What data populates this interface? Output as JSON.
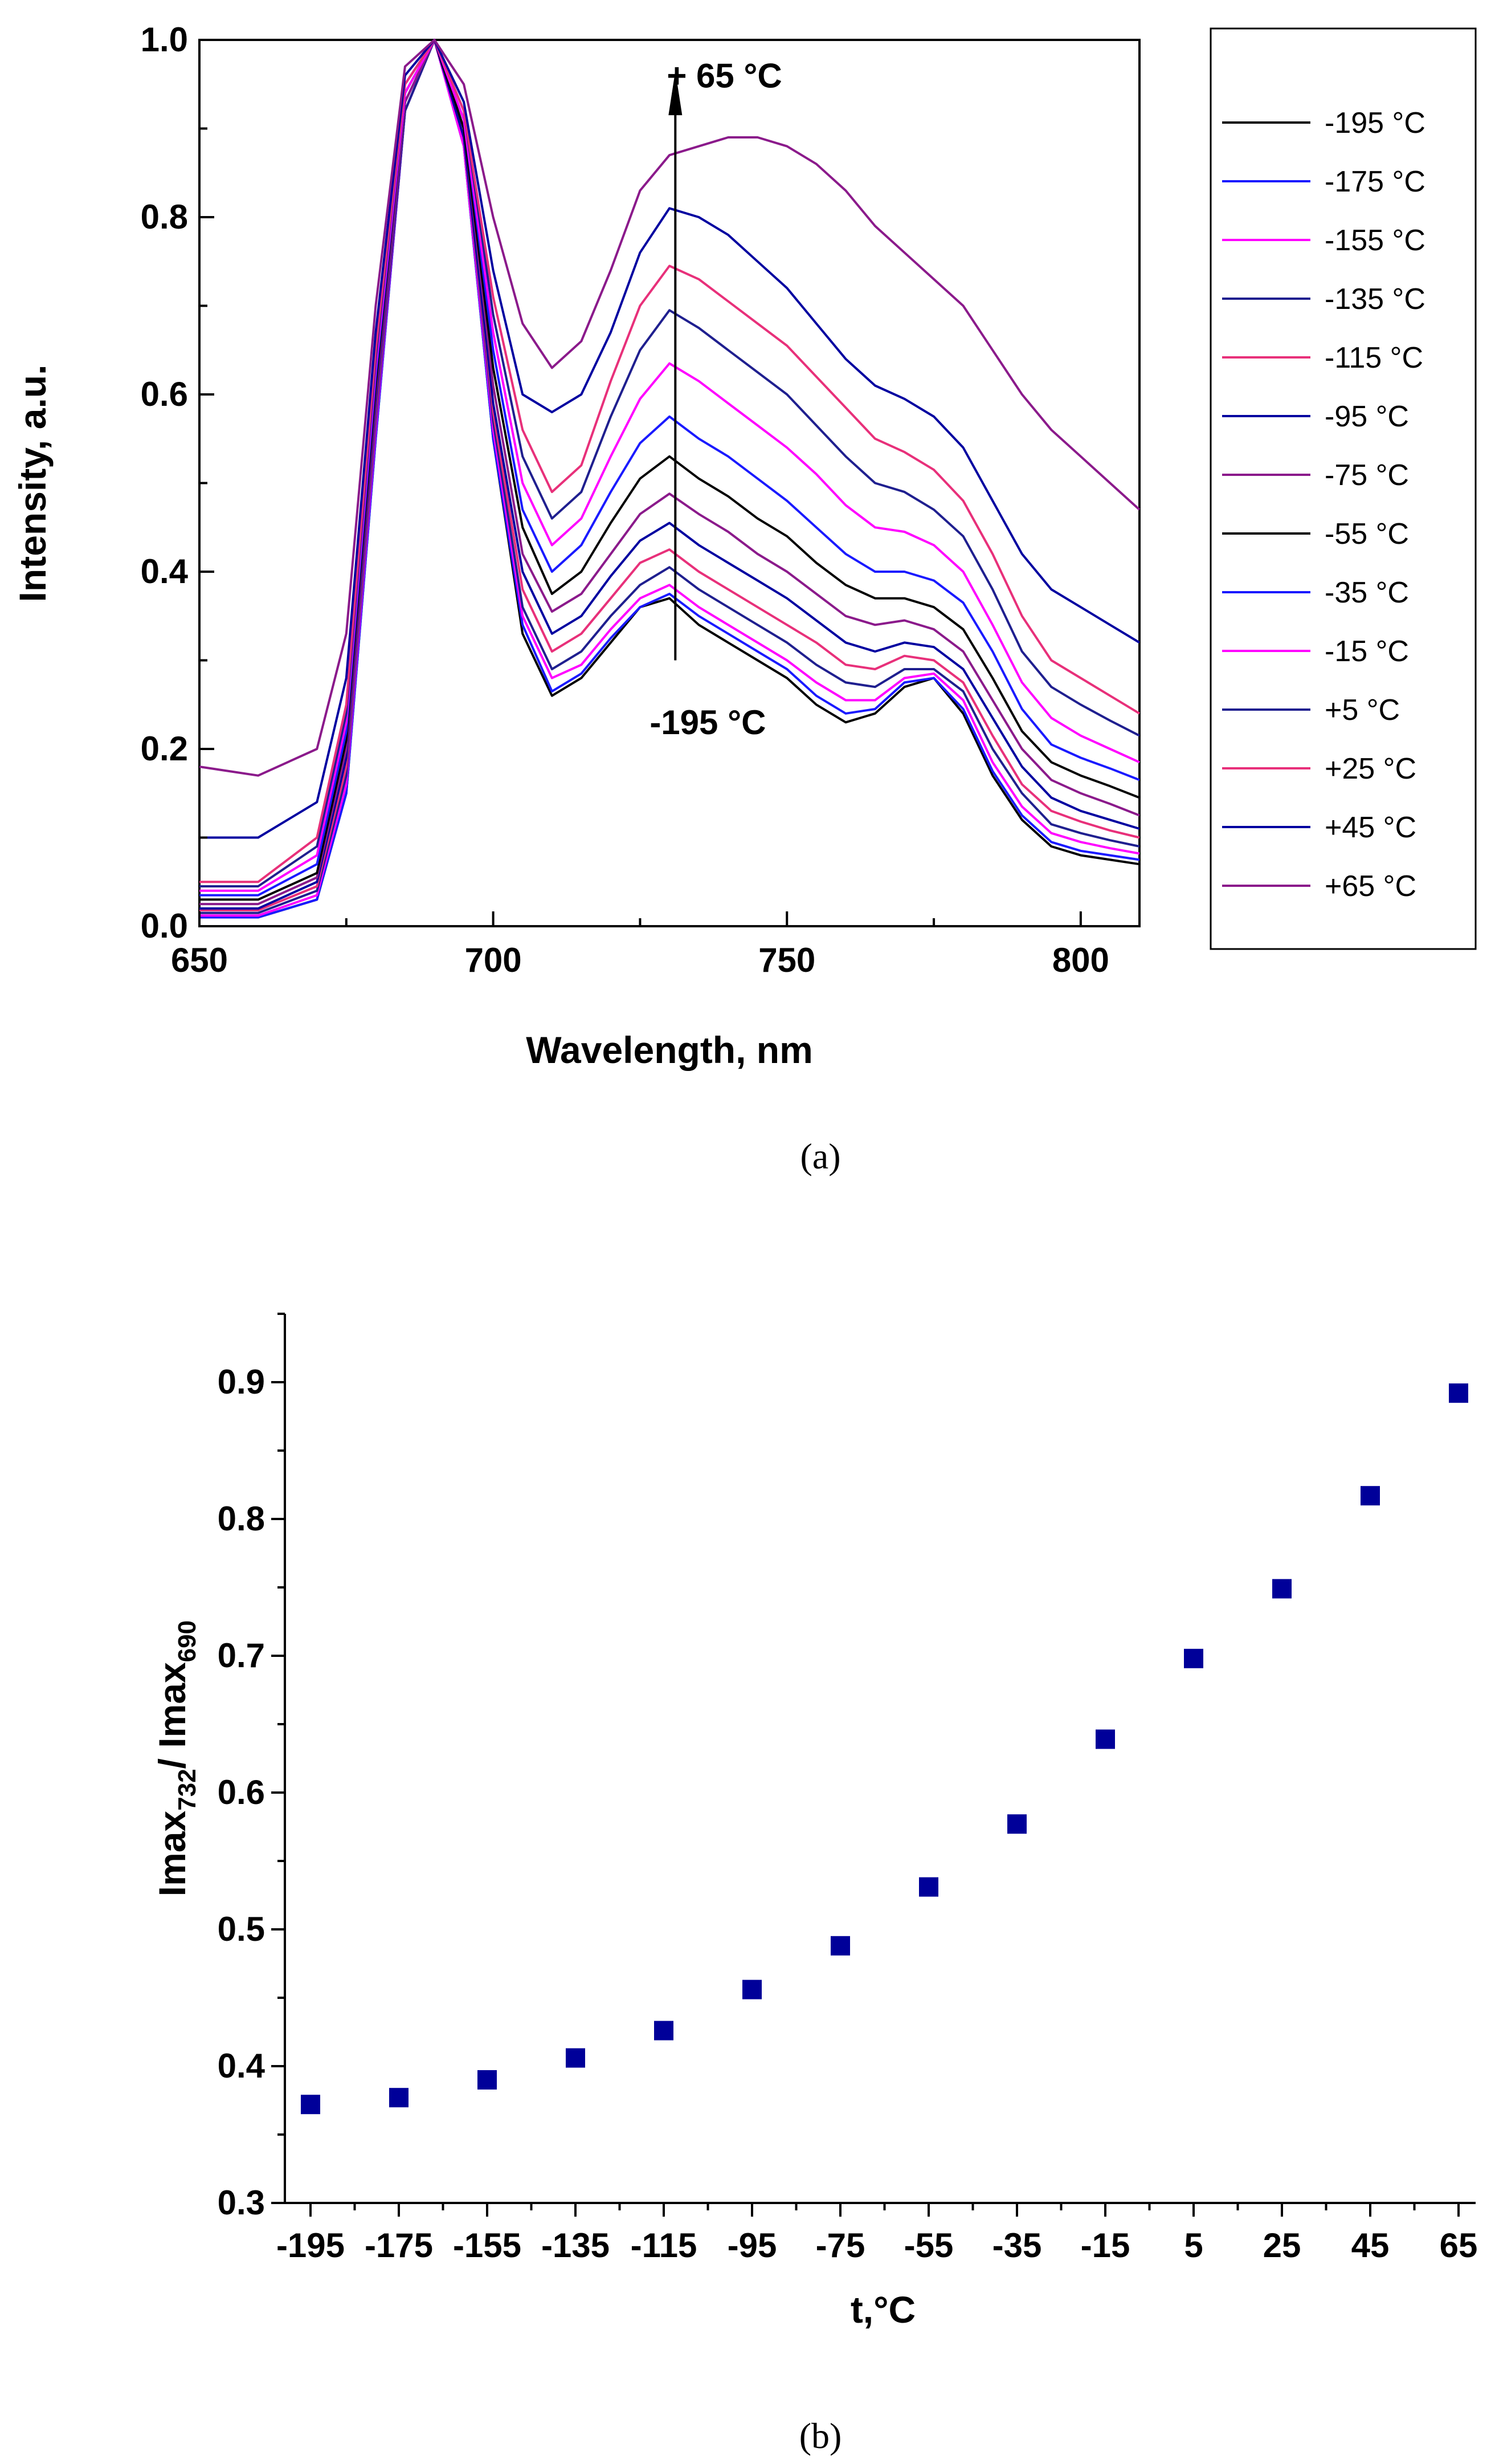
{
  "figure": {
    "caption_a": "(a)",
    "caption_b": "(b)"
  },
  "chart_data": [
    {
      "type": "line",
      "panel": "a",
      "xlabel": "Wavelength, nm",
      "ylabel": "Intensity, a.u.",
      "xlim": [
        650,
        810
      ],
      "ylim": [
        0.0,
        1.0
      ],
      "xticks": [
        "650",
        "700",
        "750",
        "800"
      ],
      "yticks": [
        "0.0",
        "0.2",
        "0.4",
        "0.6",
        "0.8",
        "1.0"
      ],
      "annotations": {
        "top": "+ 65 °C",
        "bottom": "-195 °C",
        "arrow_x": 731
      },
      "x": [
        650,
        660,
        670,
        675,
        680,
        685,
        690,
        695,
        700,
        705,
        710,
        715,
        720,
        725,
        730,
        735,
        740,
        745,
        750,
        755,
        760,
        765,
        770,
        775,
        780,
        785,
        790,
        795,
        800,
        805,
        810
      ],
      "series": [
        {
          "name": "-195 °C",
          "color": "#000000",
          "values": [
            0.01,
            0.01,
            0.03,
            0.15,
            0.55,
            0.92,
            1.0,
            0.88,
            0.55,
            0.33,
            0.26,
            0.28,
            0.32,
            0.36,
            0.37,
            0.34,
            0.32,
            0.3,
            0.28,
            0.25,
            0.23,
            0.24,
            0.27,
            0.28,
            0.24,
            0.17,
            0.12,
            0.09,
            0.08,
            0.075,
            0.07
          ]
        },
        {
          "name": "-175 °C",
          "color": "#1a1aff",
          "values": [
            0.01,
            0.01,
            0.03,
            0.15,
            0.55,
            0.92,
            1.0,
            0.88,
            0.55,
            0.34,
            0.265,
            0.285,
            0.325,
            0.36,
            0.375,
            0.35,
            0.33,
            0.31,
            0.29,
            0.26,
            0.24,
            0.245,
            0.275,
            0.28,
            0.245,
            0.175,
            0.125,
            0.095,
            0.085,
            0.08,
            0.075
          ]
        },
        {
          "name": "-155 °C",
          "color": "#ff00ff",
          "values": [
            0.012,
            0.012,
            0.035,
            0.16,
            0.56,
            0.92,
            1.0,
            0.88,
            0.56,
            0.35,
            0.28,
            0.295,
            0.335,
            0.37,
            0.385,
            0.36,
            0.34,
            0.32,
            0.3,
            0.275,
            0.255,
            0.255,
            0.28,
            0.285,
            0.255,
            0.185,
            0.135,
            0.105,
            0.095,
            0.088,
            0.082
          ]
        },
        {
          "name": "-135 °C",
          "color": "#1f1f8f",
          "values": [
            0.015,
            0.015,
            0.04,
            0.17,
            0.57,
            0.92,
            1.0,
            0.89,
            0.57,
            0.36,
            0.29,
            0.31,
            0.35,
            0.385,
            0.405,
            0.38,
            0.36,
            0.34,
            0.32,
            0.295,
            0.275,
            0.27,
            0.29,
            0.29,
            0.265,
            0.2,
            0.15,
            0.115,
            0.105,
            0.097,
            0.09
          ]
        },
        {
          "name": "-115 °C",
          "color": "#e8307a",
          "values": [
            0.018,
            0.018,
            0.045,
            0.18,
            0.58,
            0.93,
            1.0,
            0.89,
            0.58,
            0.38,
            0.31,
            0.33,
            0.37,
            0.41,
            0.425,
            0.4,
            0.38,
            0.36,
            0.34,
            0.32,
            0.295,
            0.29,
            0.305,
            0.3,
            0.275,
            0.215,
            0.16,
            0.13,
            0.118,
            0.108,
            0.1
          ]
        },
        {
          "name": "-95 °C",
          "color": "#0000a0",
          "values": [
            0.02,
            0.02,
            0.05,
            0.19,
            0.59,
            0.93,
            1.0,
            0.89,
            0.59,
            0.4,
            0.33,
            0.35,
            0.395,
            0.435,
            0.455,
            0.43,
            0.41,
            0.39,
            0.37,
            0.345,
            0.32,
            0.31,
            0.32,
            0.315,
            0.29,
            0.235,
            0.18,
            0.145,
            0.13,
            0.12,
            0.11
          ]
        },
        {
          "name": "-75 °C",
          "color": "#8b1a8b",
          "values": [
            0.025,
            0.025,
            0.055,
            0.2,
            0.6,
            0.93,
            1.0,
            0.9,
            0.61,
            0.42,
            0.355,
            0.375,
            0.42,
            0.465,
            0.488,
            0.465,
            0.445,
            0.42,
            0.4,
            0.375,
            0.35,
            0.34,
            0.345,
            0.335,
            0.31,
            0.255,
            0.2,
            0.165,
            0.15,
            0.138,
            0.125
          ]
        },
        {
          "name": "-55 °C",
          "color": "#000000",
          "values": [
            0.03,
            0.03,
            0.06,
            0.21,
            0.61,
            0.94,
            1.0,
            0.9,
            0.63,
            0.45,
            0.375,
            0.4,
            0.455,
            0.505,
            0.53,
            0.505,
            0.485,
            0.46,
            0.44,
            0.41,
            0.385,
            0.37,
            0.37,
            0.36,
            0.335,
            0.28,
            0.22,
            0.185,
            0.17,
            0.158,
            0.145
          ]
        },
        {
          "name": "-35 °C",
          "color": "#1a1aff",
          "values": [
            0.035,
            0.035,
            0.07,
            0.22,
            0.62,
            0.94,
            1.0,
            0.91,
            0.65,
            0.47,
            0.4,
            0.43,
            0.49,
            0.545,
            0.575,
            0.55,
            0.53,
            0.505,
            0.48,
            0.45,
            0.42,
            0.4,
            0.4,
            0.39,
            0.365,
            0.31,
            0.245,
            0.205,
            0.19,
            0.178,
            0.165
          ]
        },
        {
          "name": "-15 °C",
          "color": "#ff00ff",
          "values": [
            0.04,
            0.04,
            0.08,
            0.23,
            0.63,
            0.94,
            1.0,
            0.91,
            0.67,
            0.5,
            0.43,
            0.46,
            0.53,
            0.595,
            0.635,
            0.615,
            0.59,
            0.565,
            0.54,
            0.51,
            0.475,
            0.45,
            0.445,
            0.43,
            0.4,
            0.34,
            0.275,
            0.235,
            0.215,
            0.2,
            0.185
          ]
        },
        {
          "name": "+5 °C",
          "color": "#1f1f8f",
          "values": [
            0.045,
            0.045,
            0.09,
            0.24,
            0.64,
            0.95,
            1.0,
            0.92,
            0.69,
            0.53,
            0.46,
            0.49,
            0.575,
            0.65,
            0.695,
            0.675,
            0.65,
            0.625,
            0.6,
            0.565,
            0.53,
            0.5,
            0.49,
            0.47,
            0.44,
            0.38,
            0.31,
            0.27,
            0.25,
            0.232,
            0.215
          ]
        },
        {
          "name": "+25 °C",
          "color": "#e8307a",
          "values": [
            0.05,
            0.05,
            0.1,
            0.25,
            0.65,
            0.95,
            1.0,
            0.92,
            0.71,
            0.56,
            0.49,
            0.52,
            0.615,
            0.7,
            0.745,
            0.73,
            0.705,
            0.68,
            0.655,
            0.62,
            0.585,
            0.55,
            0.535,
            0.515,
            0.48,
            0.42,
            0.35,
            0.3,
            0.28,
            0.26,
            0.24
          ]
        },
        {
          "name": "+45 °C",
          "color": "#0000a0",
          "values": [
            0.1,
            0.1,
            0.14,
            0.28,
            0.67,
            0.96,
            1.0,
            0.93,
            0.74,
            0.6,
            0.58,
            0.6,
            0.67,
            0.76,
            0.81,
            0.8,
            0.78,
            0.75,
            0.72,
            0.68,
            0.64,
            0.61,
            0.595,
            0.575,
            0.54,
            0.48,
            0.42,
            0.38,
            0.36,
            0.34,
            0.32
          ]
        },
        {
          "name": "+65 °C",
          "color": "#8b1a8b",
          "values": [
            0.18,
            0.17,
            0.2,
            0.33,
            0.7,
            0.97,
            1.0,
            0.95,
            0.8,
            0.68,
            0.63,
            0.66,
            0.74,
            0.83,
            0.87,
            0.88,
            0.89,
            0.89,
            0.88,
            0.86,
            0.83,
            0.79,
            0.76,
            0.73,
            0.7,
            0.65,
            0.6,
            0.56,
            0.53,
            0.5,
            0.47
          ]
        }
      ]
    },
    {
      "type": "scatter",
      "panel": "b",
      "xlabel": "t,°C",
      "ylabel_main": "Imax",
      "ylabel_sub1": "732",
      "ylabel_mid": "/ Imax",
      "ylabel_sub2": "690",
      "ylim": [
        0.3,
        0.95
      ],
      "yticks": [
        "0.3",
        "0.4",
        "0.5",
        "0.6",
        "0.7",
        "0.8",
        "0.9"
      ],
      "categories": [
        "-195",
        "-175",
        "-155",
        "-135",
        "-115",
        "-95",
        "-75",
        "-55",
        "-35",
        "-15",
        "5",
        "25",
        "45",
        "65"
      ],
      "values": [
        0.372,
        0.377,
        0.39,
        0.406,
        0.426,
        0.456,
        0.488,
        0.531,
        0.577,
        0.639,
        0.698,
        0.749,
        0.817,
        0.892
      ],
      "marker_color": "#000099"
    }
  ]
}
